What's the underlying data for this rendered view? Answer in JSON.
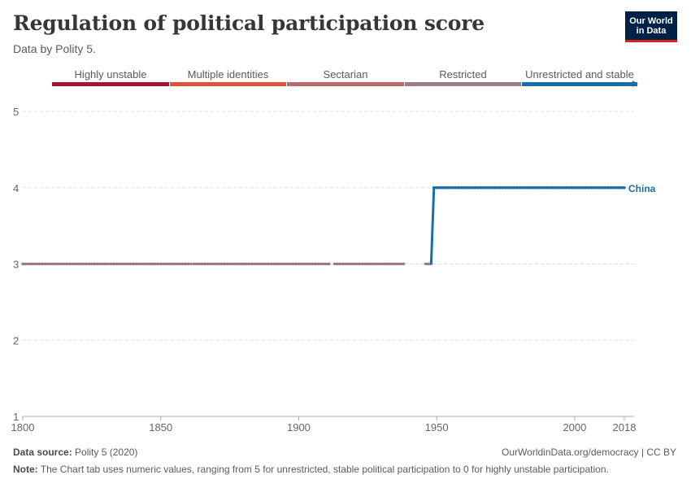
{
  "header": {
    "title": "Regulation of political participation score",
    "subtitle": "Data by Polity 5."
  },
  "logo": {
    "line1": "Our World",
    "line2": "in Data"
  },
  "legend": [
    {
      "label": "Highly unstable",
      "color": "#a2142f"
    },
    {
      "label": "Multiple identities",
      "color": "#e0503a"
    },
    {
      "label": "Sectarian",
      "color": "#b96a6a"
    },
    {
      "label": "Restricted",
      "color": "#9b7a8a"
    },
    {
      "label": "Unrestricted and stable",
      "color": "#1a6ea8"
    }
  ],
  "chart_data": {
    "type": "line",
    "title": "Regulation of political participation score",
    "subtitle": "Data by Polity 5.",
    "x_ticks": [
      1800,
      1850,
      1900,
      1950,
      2000,
      2018
    ],
    "y_ticks": [
      1,
      2,
      3,
      4,
      5
    ],
    "xlim": [
      1800,
      2018
    ],
    "ylim": [
      1,
      5
    ],
    "grid": "horizontal dashed",
    "series": [
      {
        "name": "China",
        "segments": [
          {
            "x": [
              1800,
              1861
            ],
            "y": 3,
            "color": "#9b7a8a"
          },
          {
            "x": [
              1862,
              1911
            ],
            "y": 3,
            "color": "#9b7a8a"
          },
          {
            "x": [
              1913,
              1938
            ],
            "y": 3,
            "color": "#9b7a8a"
          },
          {
            "x": [
              1946,
              1948
            ],
            "y": 3,
            "color": "#9b7a8a"
          },
          {
            "x": [
              1948,
              1949
            ],
            "y": [
              3,
              4
            ],
            "color": "#1a6ea8"
          },
          {
            "x": [
              1949,
              2018
            ],
            "y": 4,
            "color": "#1a6ea8"
          }
        ],
        "label_color": "#1a6ea8"
      }
    ]
  },
  "footer": {
    "source_label": "Data source:",
    "source_text": "Polity 5 (2020)",
    "url": "OurWorldinData.org/democracy | CC BY",
    "note_label": "Note:",
    "note_text": "The Chart tab uses numeric values, ranging from 5 for unrestricted, stable political participation to 0 for highly unstable participation."
  }
}
